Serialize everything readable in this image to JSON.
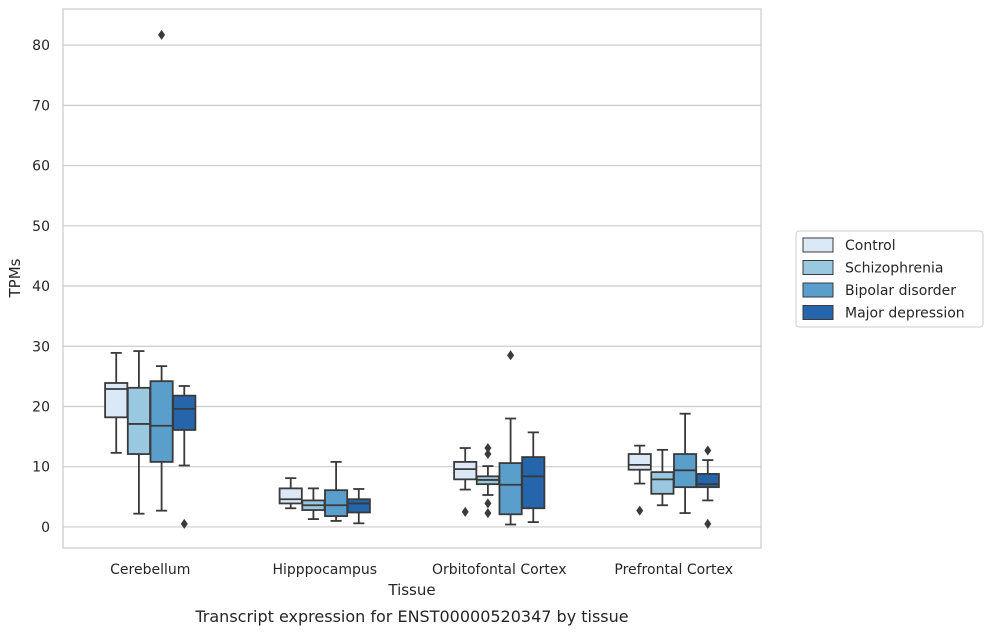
{
  "chart_data": {
    "type": "box",
    "title": "Transcript expression for ENST00000520347 by tissue",
    "xlabel": "Tissue",
    "ylabel": "TPMs",
    "ylim": [
      -3.5,
      86
    ],
    "yticks": [
      0,
      10,
      20,
      30,
      40,
      50,
      60,
      70,
      80
    ],
    "grid": true,
    "legend_position": "right",
    "categories": [
      "Cerebellum",
      "Hipppocampus",
      "Orbitofontal Cortex",
      "Prefrontal Cortex"
    ],
    "series": [
      {
        "name": "Control",
        "color": "#dbe9f6",
        "boxes": [
          {
            "whisker_low": 12.3,
            "q1": 18.2,
            "median": 22.9,
            "q3": 23.9,
            "whisker_high": 28.9,
            "outliers": []
          },
          {
            "whisker_low": 3.1,
            "q1": 3.9,
            "median": 4.6,
            "q3": 6.4,
            "whisker_high": 8.1,
            "outliers": []
          },
          {
            "whisker_low": 6.2,
            "q1": 7.9,
            "median": 9.6,
            "q3": 10.8,
            "whisker_high": 13.1,
            "outliers": [
              2.5
            ]
          },
          {
            "whisker_low": 7.2,
            "q1": 9.5,
            "median": 10.3,
            "q3": 12.1,
            "whisker_high": 13.5,
            "outliers": [
              2.7
            ]
          }
        ]
      },
      {
        "name": "Schizophrenia",
        "color": "#9ac8e0",
        "boxes": [
          {
            "whisker_low": 2.2,
            "q1": 12.1,
            "median": 17.1,
            "q3": 23.1,
            "whisker_high": 29.2,
            "outliers": []
          },
          {
            "whisker_low": 1.3,
            "q1": 2.8,
            "median": 3.6,
            "q3": 4.4,
            "whisker_high": 6.4,
            "outliers": []
          },
          {
            "whisker_low": 5.3,
            "q1": 7.1,
            "median": 7.8,
            "q3": 8.4,
            "whisker_high": 10.1,
            "outliers": [
              12.1,
              13.1,
              3.9,
              2.3
            ]
          },
          {
            "whisker_low": 3.6,
            "q1": 5.5,
            "median": 7.9,
            "q3": 9.1,
            "whisker_high": 12.8,
            "outliers": []
          }
        ]
      },
      {
        "name": "Bipolar disorder",
        "color": "#5a9ecc",
        "boxes": [
          {
            "whisker_low": 2.7,
            "q1": 10.8,
            "median": 16.8,
            "q3": 24.2,
            "whisker_high": 26.7,
            "outliers": [
              81.7
            ]
          },
          {
            "whisker_low": 1.0,
            "q1": 1.8,
            "median": 3.6,
            "q3": 6.1,
            "whisker_high": 10.8,
            "outliers": []
          },
          {
            "whisker_low": 0.4,
            "q1": 2.1,
            "median": 7.0,
            "q3": 10.6,
            "whisker_high": 18.0,
            "outliers": [
              28.5
            ]
          },
          {
            "whisker_low": 2.3,
            "q1": 6.6,
            "median": 9.4,
            "q3": 12.1,
            "whisker_high": 18.8,
            "outliers": []
          }
        ]
      },
      {
        "name": "Major depression",
        "color": "#2565ab",
        "boxes": [
          {
            "whisker_low": 10.2,
            "q1": 16.1,
            "median": 19.6,
            "q3": 21.8,
            "whisker_high": 23.4,
            "outliers": [
              0.5
            ]
          },
          {
            "whisker_low": 0.6,
            "q1": 2.4,
            "median": 3.9,
            "q3": 4.6,
            "whisker_high": 6.3,
            "outliers": []
          },
          {
            "whisker_low": 0.8,
            "q1": 3.1,
            "median": 8.4,
            "q3": 11.6,
            "whisker_high": 15.7,
            "outliers": []
          },
          {
            "whisker_low": 4.4,
            "q1": 6.6,
            "median": 7.1,
            "q3": 8.8,
            "whisker_high": 11.1,
            "outliers": [
              12.7,
              0.5
            ]
          }
        ]
      }
    ]
  }
}
